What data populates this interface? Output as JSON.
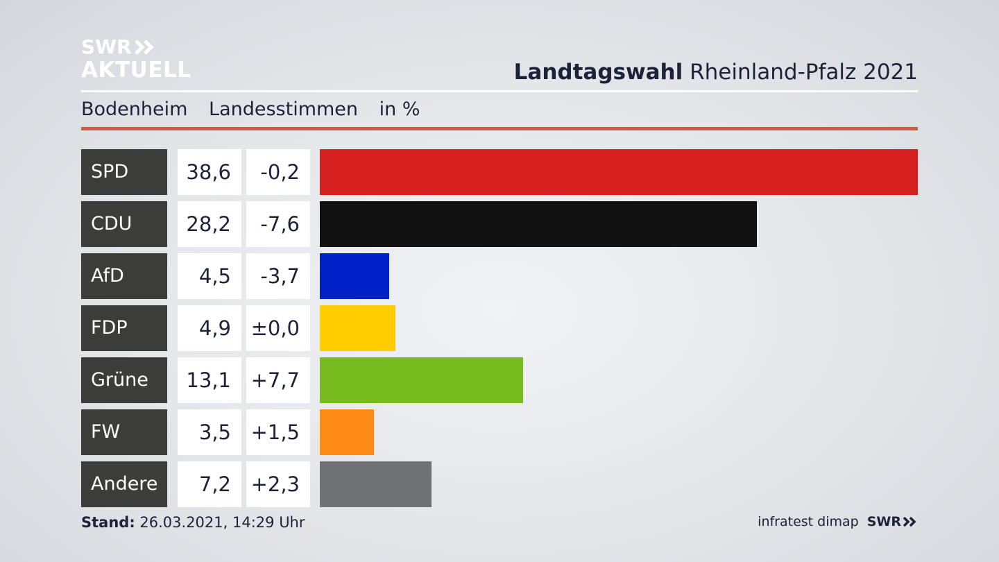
{
  "logo": {
    "line1": "SWR",
    "line2": "AKTUELL"
  },
  "header": {
    "title_bold": "Landtagswahl",
    "title_rest": "Rheinland-Pfalz 2021"
  },
  "subheader": {
    "place": "Bodenheim",
    "vote_type": "Landesstimmen",
    "unit": "in %"
  },
  "chart_data": {
    "type": "bar",
    "orientation": "horizontal",
    "categories": [
      "SPD",
      "CDU",
      "AfD",
      "FDP",
      "Grüne",
      "FW",
      "Andere"
    ],
    "values": [
      38.6,
      28.2,
      4.5,
      4.9,
      13.1,
      3.5,
      7.2
    ],
    "value_labels": [
      "38,6",
      "28,2",
      "4,5",
      "4,9",
      "13,1",
      "3,5",
      "7,2"
    ],
    "changes": [
      -0.2,
      -7.6,
      -3.7,
      0.0,
      7.7,
      1.5,
      2.3
    ],
    "change_labels": [
      "-0,2",
      "-7,6",
      "-3,7",
      "±0,0",
      "+7,7",
      "+1,5",
      "+2,3"
    ],
    "colors": [
      "#d61f1f",
      "#121212",
      "#0020c8",
      "#ffcc00",
      "#77bb1c",
      "#ff8c16",
      "#707173"
    ],
    "xlim": [
      0,
      38.6
    ],
    "grid": false
  },
  "footer": {
    "stand_label": "Stand:",
    "stand_value": "26.03.2021, 14:29 Uhr",
    "source": "infratest dimap",
    "brand": "SWR"
  }
}
